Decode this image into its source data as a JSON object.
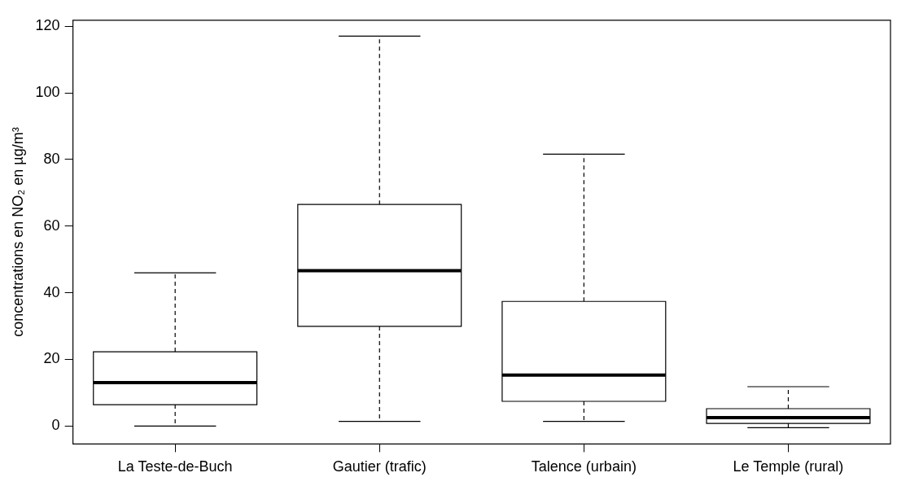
{
  "chart_data": {
    "type": "box",
    "ylabel": "concentrations en NO₂ en µg/m³",
    "categories": [
      "La Teste-de-Buch",
      "Gautier (trafic)",
      "Talence (urbain)",
      "Le Temple (rural)"
    ],
    "boxes": [
      {
        "low": 0,
        "q1": 6.4,
        "median": 13,
        "q3": 22.3,
        "high": 46
      },
      {
        "low": 1.4,
        "q1": 29.9,
        "median": 46.6,
        "q3": 66.5,
        "high": 117
      },
      {
        "low": 1.4,
        "q1": 7.4,
        "median": 15.3,
        "q3": 37.4,
        "high": 81.6
      },
      {
        "low": -0.5,
        "q1": 0.8,
        "median": 2.5,
        "q3": 5.2,
        "high": 11.8
      }
    ],
    "ylim": [
      -5.4,
      121.8
    ],
    "yticks": [
      0,
      20,
      40,
      60,
      80,
      100,
      120
    ],
    "grid": false,
    "legend": false
  }
}
